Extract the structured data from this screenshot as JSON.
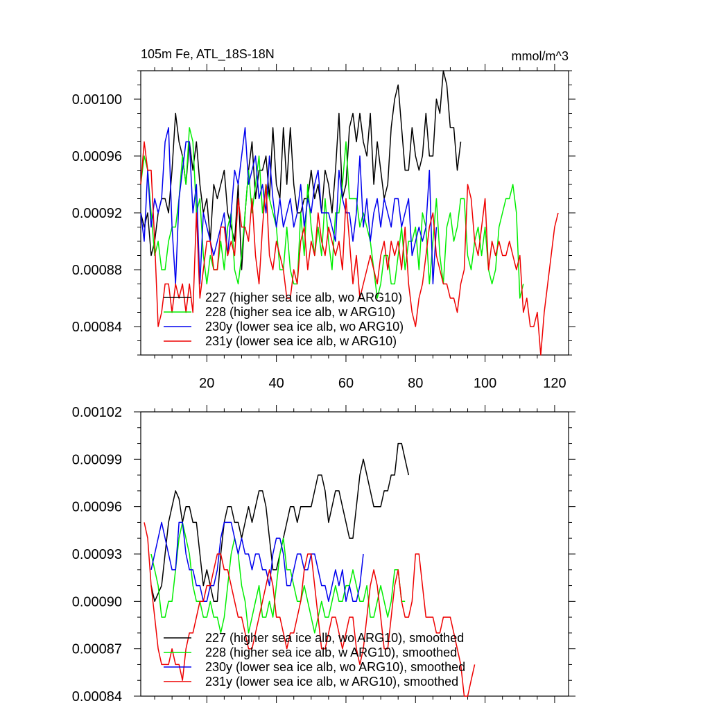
{
  "figure": {
    "title_left": "105m Fe, ATL_18S-18N",
    "title_right": "mmol/m^3"
  },
  "colors": {
    "s227": "#000000",
    "s228": "#00ee00",
    "s230": "#0000ee",
    "s231": "#ee0000"
  },
  "chart_data": [
    {
      "type": "line",
      "title": "105m Fe, ATL_18S-18N",
      "units": "mmol/m^3",
      "xlim": [
        1,
        124
      ],
      "ylim": [
        0.00082,
        0.00102
      ],
      "xticks": [
        20,
        40,
        60,
        80,
        100,
        120
      ],
      "yticks": [
        0.00084,
        0.00088,
        0.00092,
        0.00096,
        0.001
      ],
      "ytick_labels": [
        "0.00084",
        "0.00088",
        "0.00092",
        "0.00096",
        "0.00100"
      ],
      "legend": [
        "227 (higher sea ice alb, wo ARG10)",
        "228 (higher sea ice alb, w ARG10)",
        "230y (lower sea ice alb, wo ARG10)",
        "231y (lower sea ice alb, w ARG10)"
      ],
      "series": [
        {
          "name": "227 (higher sea ice alb, wo ARG10)",
          "color": "#000000",
          "x_start": 1,
          "values": [
            0.00092,
            0.00091,
            0.00092,
            0.00089,
            0.0009,
            0.00092,
            0.00093,
            0.00093,
            0.00092,
            0.00095,
            0.00099,
            0.00097,
            0.00096,
            0.00094,
            0.00097,
            0.00095,
            0.00097,
            0.00094,
            0.00092,
            0.00093,
            0.0009,
            0.00094,
            0.00093,
            0.00094,
            0.00095,
            0.00092,
            0.00091,
            0.0009,
            0.00094,
            0.00088,
            0.00092,
            0.00095,
            0.00097,
            0.00093,
            0.00095,
            0.00095,
            0.00096,
            0.00093,
            0.00098,
            0.00094,
            0.00093,
            0.00098,
            0.00094,
            0.00098,
            0.00094,
            0.00092,
            0.00092,
            0.00093,
            0.00093,
            0.00095,
            0.00093,
            0.00094,
            0.00092,
            0.00095,
            0.00094,
            0.00092,
            0.00095,
            0.00099,
            0.00093,
            0.00094,
            0.00098,
            0.00099,
            0.00097,
            0.00099,
            0.00097,
            0.00096,
            0.00099,
            0.00094,
            0.00097,
            0.00095,
            0.00093,
            0.00094,
            0.00098,
            0.001,
            0.00101,
            0.00098,
            0.00095,
            0.00095,
            0.00098,
            0.00096,
            0.00095,
            0.00096,
            0.00099,
            0.00096,
            0.00096,
            0.001,
            0.00099,
            0.00102,
            0.00101,
            0.00098,
            0.00098,
            0.00095,
            0.00097
          ]
        },
        {
          "name": "228 (higher sea ice alb, w ARG10)",
          "color": "#00ee00",
          "x_start": 1,
          "values": [
            0.00094,
            0.00096,
            0.00095,
            0.00092,
            0.00089,
            0.0009,
            0.00088,
            0.00088,
            0.0009,
            0.00091,
            0.00091,
            0.00093,
            0.00096,
            0.00094,
            0.00098,
            0.00097,
            0.00092,
            0.00093,
            0.00089,
            0.00087,
            0.00089,
            0.00088,
            0.00088,
            0.0009,
            0.00088,
            0.00091,
            0.00092,
            0.00088,
            0.00087,
            0.00089,
            0.00092,
            0.00095,
            0.00092,
            0.00094,
            0.00096,
            0.00092,
            0.00094,
            0.00093,
            0.00092,
            0.00091,
            0.00088,
            0.00088,
            0.00091,
            0.00088,
            0.00087,
            0.00087,
            0.00092,
            0.00089,
            0.00094,
            0.00091,
            0.00089,
            0.00091,
            0.00089,
            0.00093,
            0.0009,
            0.00088,
            0.00092,
            0.00092,
            0.00094,
            0.00097,
            0.00093,
            0.00093,
            0.00093,
            0.00091,
            0.00092,
            0.00091,
            0.0009,
            0.00088,
            0.00086,
            0.00087,
            0.00089,
            0.00089,
            0.00087,
            0.00087,
            0.00089,
            0.00091,
            0.00088,
            0.0009,
            0.0009,
            0.00091,
            0.00088,
            0.00092,
            0.00091,
            0.00087,
            0.0009,
            0.00093,
            0.00089,
            0.00087,
            0.00091,
            0.00092,
            0.0009,
            0.00091,
            0.00093,
            0.00093,
            0.00089,
            0.00088,
            0.0009,
            0.00091,
            0.00089,
            0.00091,
            0.00088,
            0.00087,
            0.00088,
            0.00091,
            0.00092,
            0.00093,
            0.00093,
            0.00094,
            0.00092,
            0.00086,
            0.00087
          ]
        },
        {
          "name": "230y (lower sea ice alb, wo ARG10)",
          "color": "#0000ee",
          "x_start": 1,
          "values": [
            0.00092,
            0.0009,
            0.00095,
            0.00091,
            0.00093,
            0.00092,
            0.00093,
            0.00097,
            0.00098,
            0.00091,
            0.00087,
            0.00093,
            0.00095,
            0.00097,
            0.00097,
            0.00092,
            0.00094,
            0.00087,
            0.00092,
            0.00091,
            0.0009,
            0.00089,
            0.0009,
            0.00091,
            0.00092,
            0.00089,
            0.00092,
            0.00095,
            0.00094,
            0.00096,
            0.00098,
            0.00094,
            0.00095,
            0.00096,
            0.00093,
            0.00094,
            0.00092,
            0.00096,
            0.00093,
            0.00091,
            0.00093,
            0.00091,
            0.00092,
            0.00093,
            0.00091,
            0.00092,
            0.00094,
            0.00091,
            0.00093,
            0.00092,
            0.00094,
            0.00095,
            0.00092,
            0.00092,
            0.00092,
            0.00091,
            0.0009,
            0.00095,
            0.00093,
            0.00092,
            0.00092,
            0.0009,
            0.00092,
            0.00096,
            0.00091,
            0.00093,
            0.0009,
            0.00092,
            0.00093,
            0.00091,
            0.00093,
            0.00092,
            0.00091,
            0.00093,
            0.00093,
            0.00091,
            0.00092,
            0.00093,
            0.00089,
            0.0009,
            0.00091,
            0.0009,
            0.00091,
            0.00095,
            0.00087,
            0.00091
          ]
        },
        {
          "name": "231y (lower sea ice alb, w ARG10)",
          "color": "#ee0000",
          "x_start": 1,
          "values": [
            0.00094,
            0.00097,
            0.00095,
            0.00095,
            0.0009,
            0.00084,
            0.00085,
            0.00087,
            0.00087,
            0.00085,
            0.00087,
            0.00086,
            0.00087,
            0.00085,
            0.00087,
            0.00085,
            0.00092,
            0.00086,
            0.00088,
            0.0009,
            0.0009,
            0.00088,
            0.00088,
            0.00091,
            0.00091,
            0.00089,
            0.0009,
            0.00089,
            0.00093,
            0.00091,
            0.00091,
            0.0009,
            0.00093,
            0.00089,
            0.00087,
            0.00091,
            0.00094,
            0.00089,
            0.00088,
            0.0009,
            0.00089,
            0.00088,
            0.00086,
            0.00086,
            0.00088,
            0.00087,
            0.0009,
            0.00091,
            0.00088,
            0.0009,
            0.00089,
            0.00092,
            0.0009,
            0.00089,
            0.00091,
            0.0009,
            0.00089,
            0.0009,
            0.00088,
            0.00093,
            0.0009,
            0.00087,
            0.00089,
            0.00086,
            0.00087,
            0.00088,
            0.00089,
            0.00088,
            0.00087,
            0.00089,
            0.0009,
            0.00088,
            0.0009,
            0.00089,
            0.0009,
            0.00088,
            0.00091,
            0.00087,
            0.00085,
            0.00084,
            0.00086,
            0.00087,
            0.00089,
            0.00091,
            0.00092,
            0.00089,
            0.00088,
            0.00087,
            0.00087,
            0.00086,
            0.00086,
            0.00085,
            0.00087,
            0.00088,
            0.00094,
            0.00093,
            0.0009,
            0.00089,
            0.00091,
            0.00093,
            0.00088,
            0.0009,
            0.00089,
            0.0009,
            0.00089,
            0.00089,
            0.0009,
            0.00089,
            0.00088,
            0.00089,
            0.00085,
            0.00086,
            0.00084,
            0.00084,
            0.00085,
            0.00082,
            0.00085,
            0.00087,
            0.00089,
            0.00091,
            0.00092
          ]
        }
      ]
    },
    {
      "type": "line",
      "title": "",
      "xlim": [
        1,
        124
      ],
      "ylim": [
        0.00084,
        0.00102
      ],
      "yticks": [
        0.00084,
        0.00087,
        0.0009,
        0.00093,
        0.00096,
        0.00099,
        0.00102
      ],
      "ytick_labels": [
        "0.00084",
        "0.00087",
        "0.00090",
        "0.00093",
        "0.00096",
        "0.00099",
        "0.00102"
      ],
      "legend": [
        "227 (higher sea ice alb, wo ARG10), smoothed",
        "228 (higher sea ice alb, w ARG10), smoothed",
        "230y (lower sea ice alb, wo ARG10), smoothed",
        "231y (lower sea ice alb, w ARG10), smoothed"
      ],
      "series": [
        {
          "name": "227 (higher sea ice alb, wo ARG10), smoothed",
          "color": "#000000",
          "x_start": 4,
          "values": [
            0.00091,
            0.0009,
            0.000905,
            0.00091,
            0.00093,
            0.00095,
            0.00096,
            0.00097,
            0.000965,
            0.00095,
            0.00096,
            0.00096,
            0.00095,
            0.00095,
            0.00093,
            0.00091,
            0.00092,
            0.00091,
            0.0009,
            0.0009,
            0.00093,
            0.00095,
            0.00096,
            0.00096,
            0.00095,
            0.00095,
            0.00094,
            0.00095,
            0.00096,
            0.00095,
            0.00096,
            0.00097,
            0.00097,
            0.00096,
            0.00094,
            0.00092,
            0.00092,
            0.00093,
            0.00094,
            0.00095,
            0.00096,
            0.00096,
            0.00095,
            0.00096,
            0.00096,
            0.00096,
            0.00096,
            0.00097,
            0.00098,
            0.00098,
            0.00097,
            0.00095,
            0.00096,
            0.00097,
            0.00097,
            0.00096,
            0.00095,
            0.00094,
            0.00094,
            0.00096,
            0.00098,
            0.00099,
            0.00098,
            0.00097,
            0.00096,
            0.00096,
            0.00096,
            0.00097,
            0.00097,
            0.00098,
            0.00098,
            0.001,
            0.001,
            0.00099,
            0.00098
          ]
        },
        {
          "name": "228 (higher sea ice alb, w ARG10), smoothed",
          "color": "#00ee00",
          "x_start": 4,
          "values": [
            0.00093,
            0.00092,
            0.00091,
            0.00089,
            0.00089,
            0.0009,
            0.0009,
            0.00092,
            0.00094,
            0.00095,
            0.00094,
            0.00093,
            0.00091,
            0.0009,
            0.0009,
            0.00089,
            0.00089,
            0.0009,
            0.00089,
            0.00089,
            0.00088,
            0.00089,
            0.00091,
            0.00093,
            0.00094,
            0.00093,
            0.00091,
            0.0009,
            0.00088,
            0.00089,
            0.0009,
            0.00091,
            0.00089,
            0.00089,
            0.0009,
            0.00089,
            0.00091,
            0.00093,
            0.00094,
            0.00092,
            0.00092,
            0.00091,
            0.0009,
            0.0009,
            0.00091,
            0.0009,
            0.00089,
            0.00088,
            0.00089,
            0.0009,
            0.00089,
            0.00089,
            0.0009,
            0.00091,
            0.0009,
            0.0009,
            0.00091,
            0.00091,
            0.00092,
            0.00091,
            0.0009,
            0.0009,
            0.00091,
            0.00089,
            0.00089,
            0.0009,
            0.00091,
            0.0009,
            0.00089,
            0.0009,
            0.00092,
            0.00092,
            0.0009,
            0.0009
          ]
        },
        {
          "name": "230y (lower sea ice alb, wo ARG10), smoothed",
          "color": "#0000ee",
          "x_start": 4,
          "values": [
            0.00092,
            0.00093,
            0.00094,
            0.00095,
            0.00094,
            0.00093,
            0.00092,
            0.00092,
            0.00095,
            0.00095,
            0.00093,
            0.00092,
            0.00092,
            0.00091,
            0.00091,
            0.0009,
            0.0009,
            0.00091,
            0.00091,
            0.00092,
            0.00094,
            0.00095,
            0.00095,
            0.00095,
            0.00094,
            0.00093,
            0.00094,
            0.00093,
            0.00093,
            0.00092,
            0.00093,
            0.00093,
            0.00092,
            0.00092,
            0.00091,
            0.00093,
            0.00094,
            0.00094,
            0.00093,
            0.00091,
            0.00091,
            0.00092,
            0.00093,
            0.00093,
            0.00092,
            0.00092,
            0.00093,
            0.00093,
            0.00092,
            0.00091,
            0.00091,
            0.0009,
            0.00091,
            0.00092,
            0.00091,
            0.00092,
            0.0009,
            0.00091,
            0.0009,
            0.0009,
            0.00091,
            0.00093
          ]
        },
        {
          "name": "231y (lower sea ice alb, w ARG10), smoothed",
          "color": "#ee0000",
          "x_start": 2,
          "values": [
            0.00095,
            0.00094,
            0.00091,
            0.00089,
            0.00087,
            0.00086,
            0.00086,
            0.00086,
            0.00087,
            0.00086,
            0.00086,
            0.00085,
            0.00087,
            0.00088,
            0.00088,
            0.00089,
            0.0009,
            0.0009,
            0.00091,
            0.00091,
            0.00092,
            0.00093,
            0.00093,
            0.00092,
            0.00092,
            0.00091,
            0.0009,
            0.00089,
            0.00089,
            0.00088,
            0.00087,
            0.00087,
            0.00088,
            0.00089,
            0.0009,
            0.00091,
            0.00092,
            0.00091,
            0.00089,
            0.00089,
            0.00088,
            0.00087,
            0.00088,
            0.00088,
            0.00089,
            0.0009,
            0.00092,
            0.00093,
            0.00093,
            0.00091,
            0.00089,
            0.00087,
            0.00087,
            0.00088,
            0.00089,
            0.00089,
            0.00088,
            0.00087,
            0.00088,
            0.00089,
            0.00089,
            0.00087,
            0.00086,
            0.00087,
            0.00089,
            0.00091,
            0.00092,
            0.00091,
            0.00089,
            0.00087,
            0.00087,
            0.00089,
            0.00091,
            0.00092,
            0.0009,
            0.00089,
            0.00089,
            0.0009,
            0.00093,
            0.00093,
            0.00091,
            0.00089,
            0.00089,
            0.00089,
            0.00088,
            0.00088,
            0.00089,
            0.00089,
            0.00089,
            0.00088,
            0.00087,
            0.00086,
            0.00084,
            0.00084,
            0.00085,
            0.00086
          ]
        }
      ]
    }
  ]
}
